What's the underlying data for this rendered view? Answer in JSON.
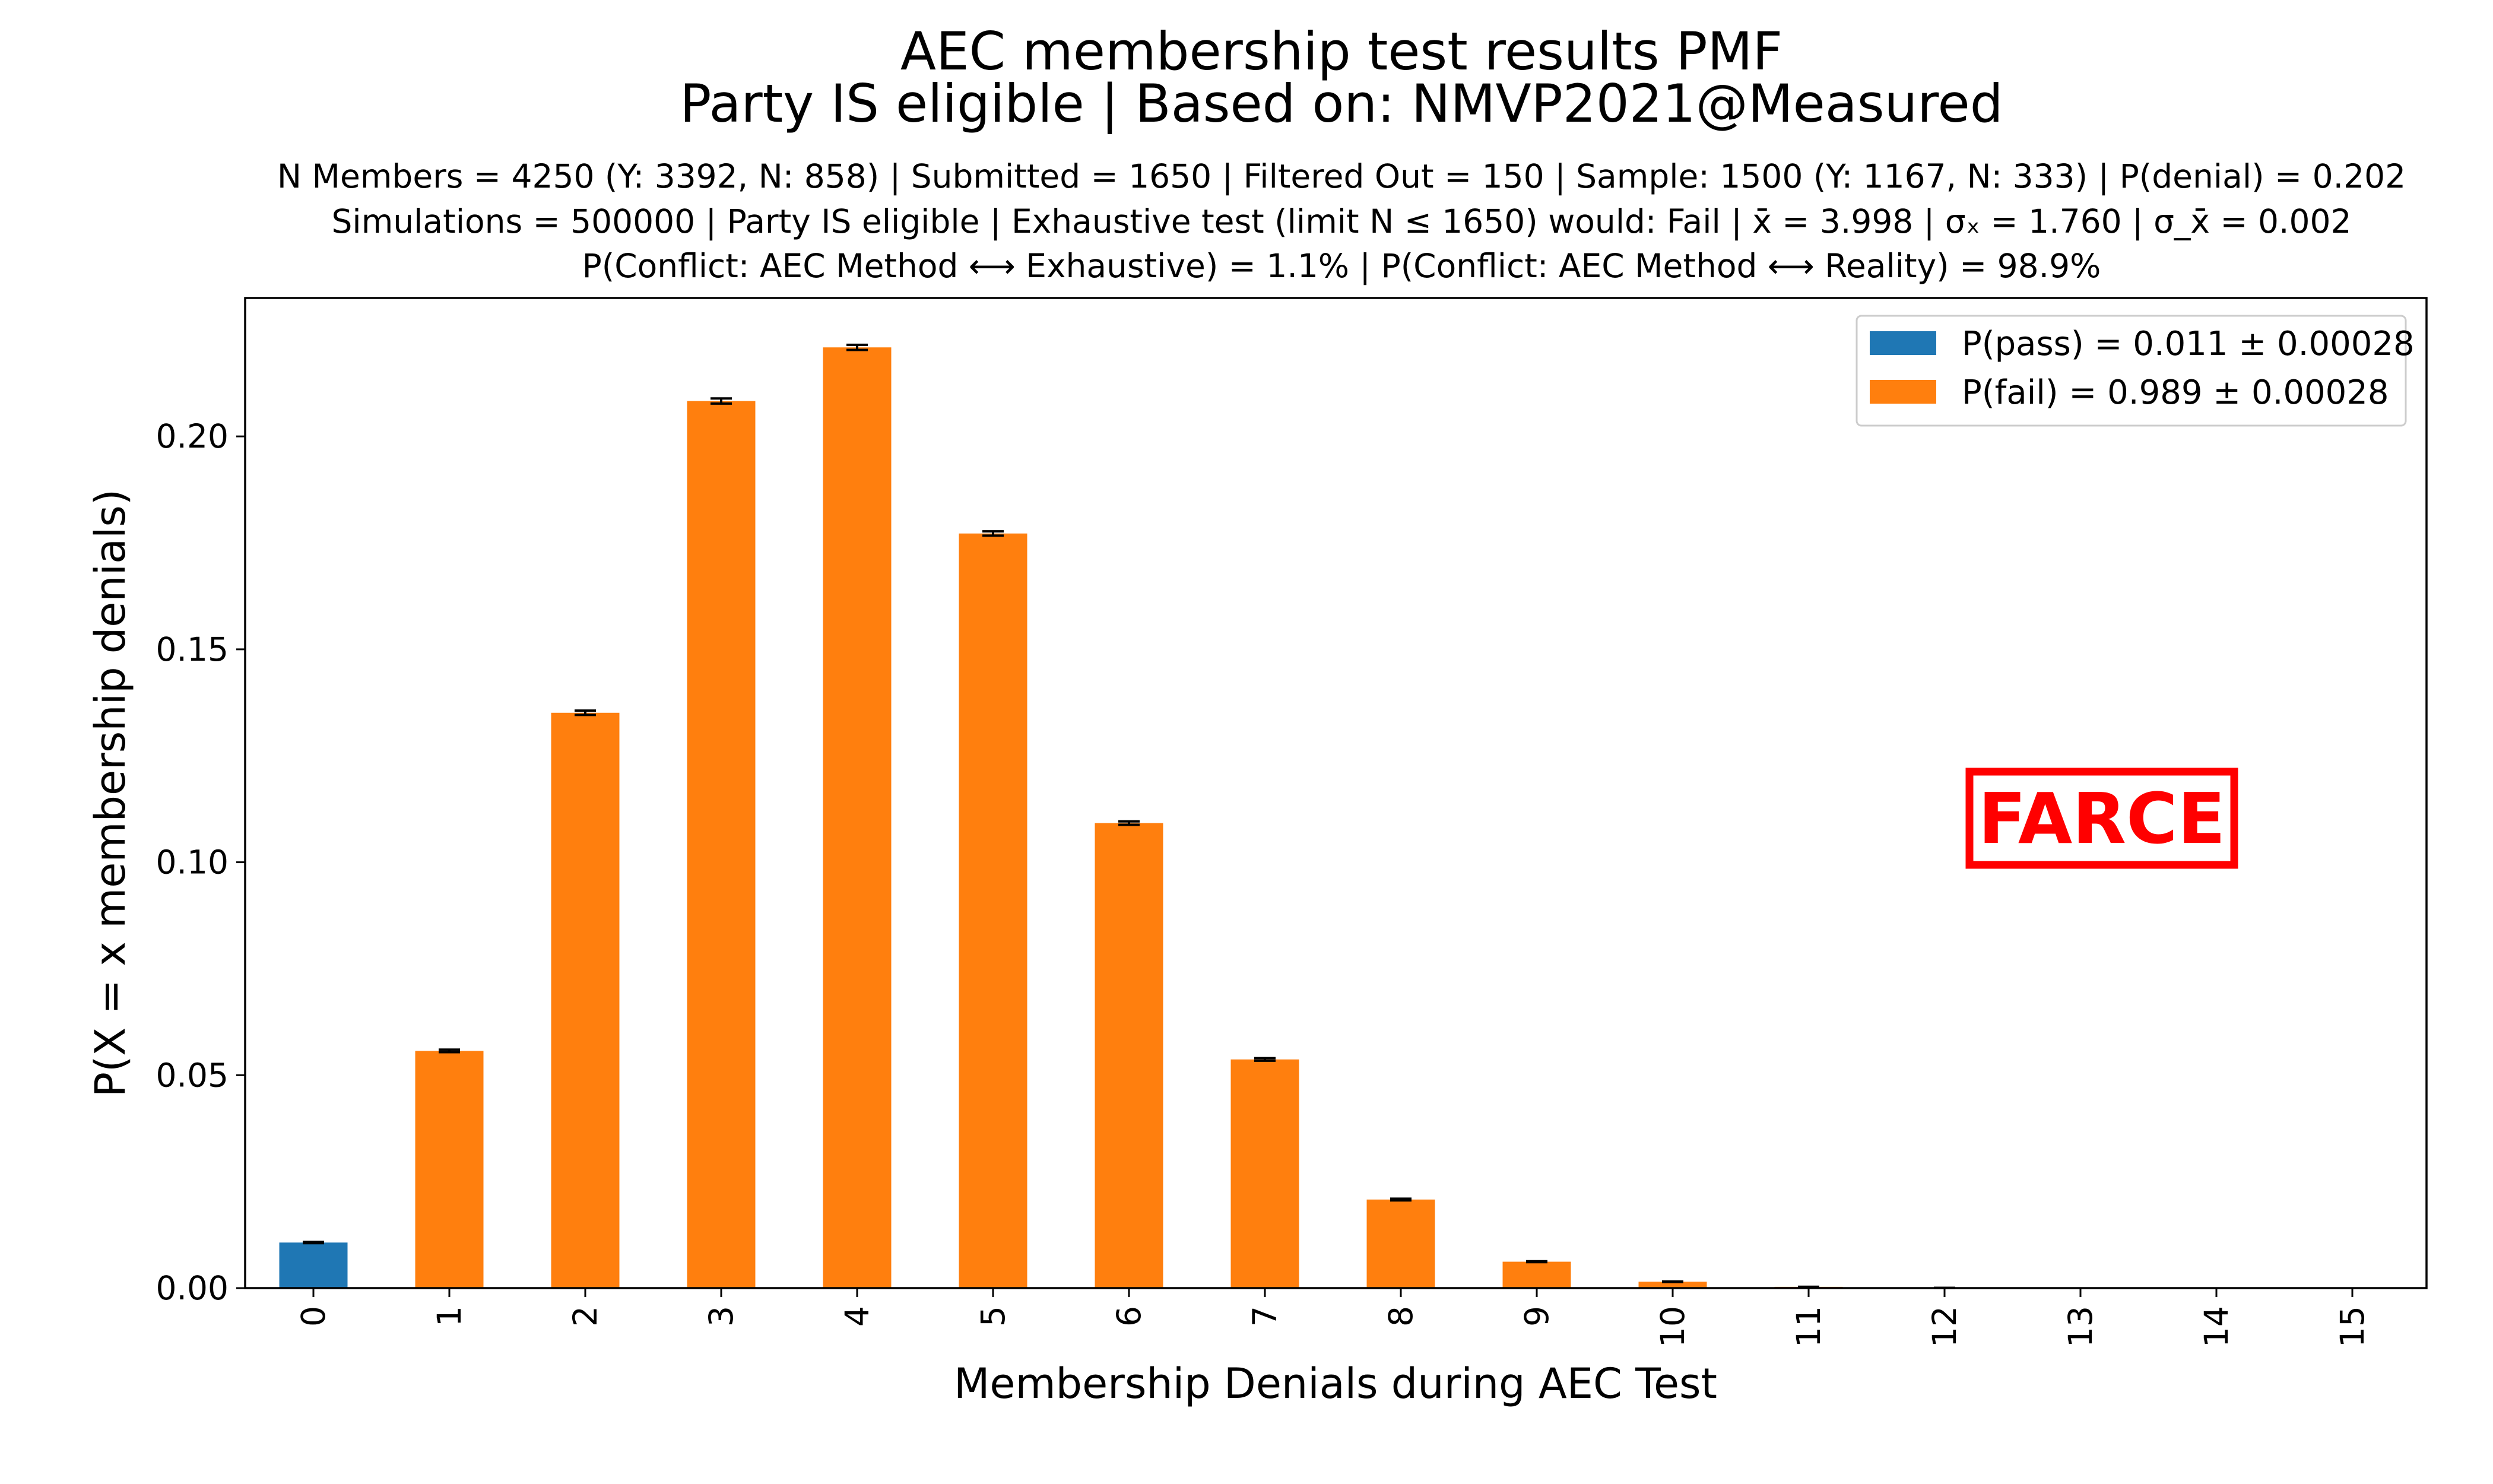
{
  "chart_data": {
    "type": "bar",
    "title": "AEC membership test results PMF",
    "subtitle": "Party IS eligible | Based on: NMVP2021@Measured",
    "info_lines": [
      "N Members = 4250 (Y: 3392, N: 858) | Submitted = 1650 | Filtered Out = 150 | Sample: 1500 (Y: 1167, N: 333) | P(denial) = 0.202",
      "Simulations = 500000 | Party IS eligible | Exhaustive test (limit N ≤ 1650) would: Fail | x̄ = 3.998 | σₓ = 1.760 | σ_x̄ = 0.002",
      "P(Conflict: AEC Method ⟷ Exhaustive) = 1.1% | P(Conflict: AEC Method ⟷ Reality) = 98.9%"
    ],
    "xlabel": "Membership Denials during AEC Test",
    "ylabel": "P(X = x membership denials)",
    "categories": [
      "0",
      "1",
      "2",
      "3",
      "4",
      "5",
      "6",
      "7",
      "8",
      "9",
      "10",
      "11",
      "12",
      "13",
      "14",
      "15"
    ],
    "values": [
      0.0107,
      0.0557,
      0.1351,
      0.2083,
      0.2209,
      0.1772,
      0.1092,
      0.0537,
      0.0208,
      0.0062,
      0.0015,
      0.0003,
      5e-05,
      0.0,
      0.0,
      0.0
    ],
    "errors": [
      0.00015,
      0.0003,
      0.0005,
      0.0006,
      0.0006,
      0.0005,
      0.0004,
      0.0003,
      0.0002,
      0.0001,
      5e-05,
      2e-05,
      0.0,
      0.0,
      0.0,
      0.0
    ],
    "pass_categories": [
      "0"
    ],
    "ylim": [
      0,
      0.2325
    ],
    "yticks": [
      "0.00",
      "0.05",
      "0.10",
      "0.15",
      "0.20"
    ],
    "ytick_values": [
      0,
      0.05,
      0.1,
      0.15,
      0.2
    ],
    "grid": false,
    "legend_position": "top-right",
    "legend": [
      {
        "label": "P(pass) = 0.011 ± 0.00028",
        "color": "#1f77b4"
      },
      {
        "label": "P(fail) = 0.989 ± 0.00028",
        "color": "#ff7f0e"
      }
    ],
    "colors": {
      "pass": "#1f77b4",
      "fail": "#ff7f0e",
      "error_bar": "#000000"
    },
    "stamp": {
      "text": "FARCE",
      "color": "#ff0000"
    }
  }
}
